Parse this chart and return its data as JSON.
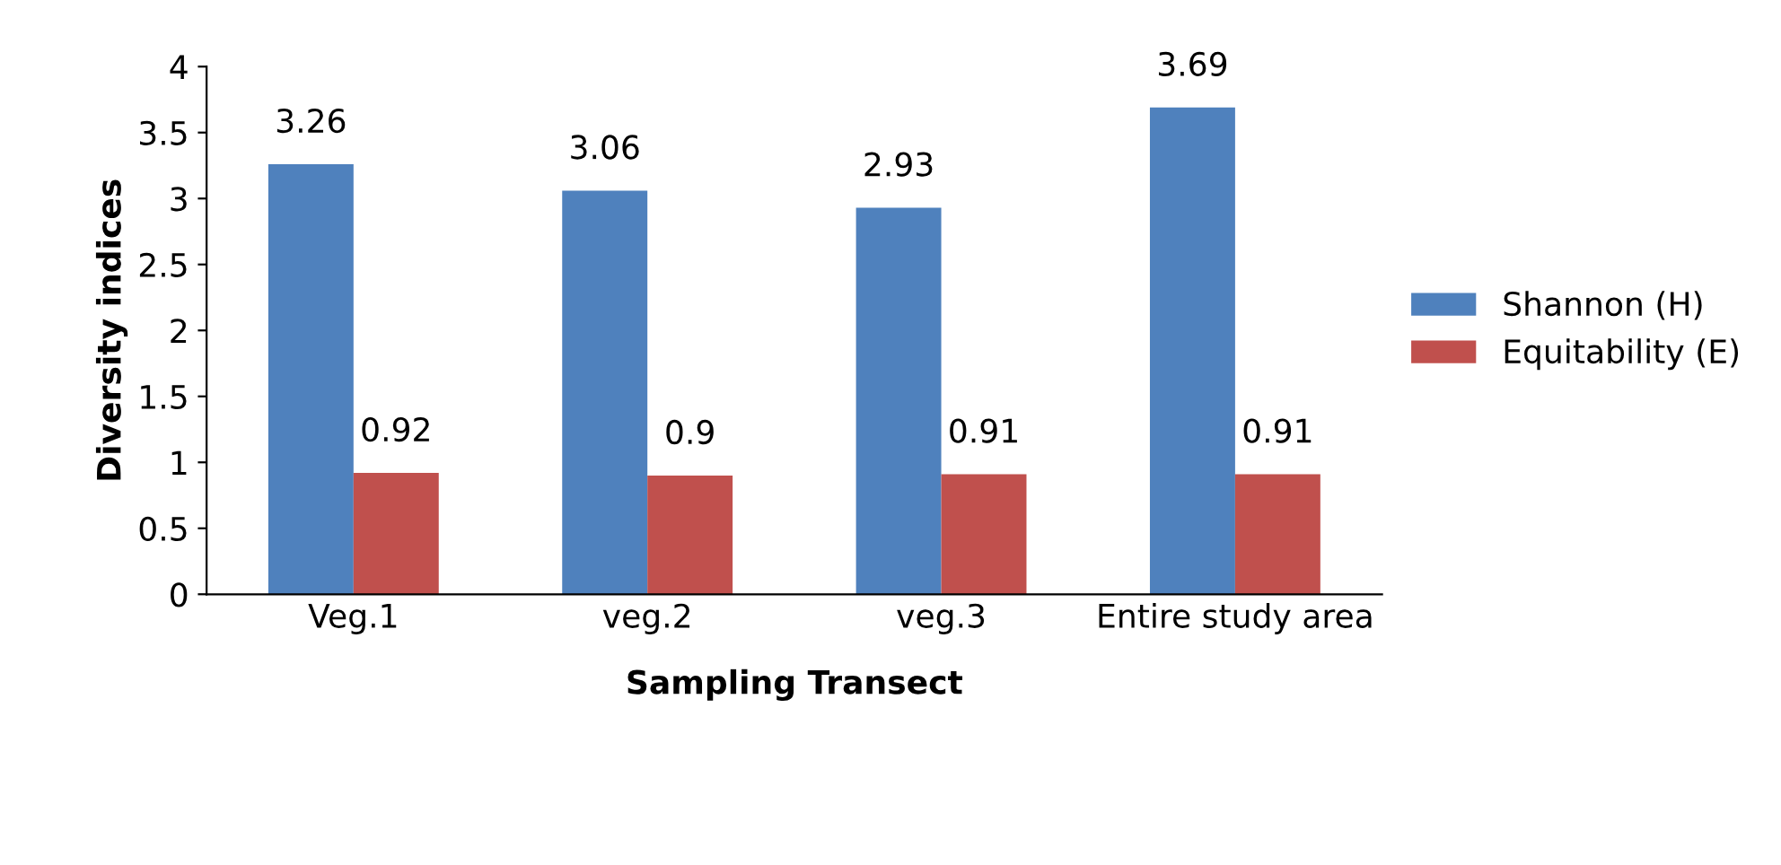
{
  "chart_data": {
    "type": "bar",
    "xlabel": "Sampling Transect",
    "ylabel": "Diversity indices",
    "categories": [
      "Veg.1",
      "veg.2",
      "veg.3",
      "Entire study area"
    ],
    "series": [
      {
        "name": "Shannon (H)",
        "color": "#4f81bd",
        "values": [
          3.26,
          3.06,
          2.93,
          3.69
        ]
      },
      {
        "name": "Equitability (E)",
        "color": "#c0504d",
        "values": [
          0.92,
          0.9,
          0.91,
          0.91
        ]
      }
    ],
    "ylim": [
      0,
      4
    ],
    "yticks": [
      0,
      0.5,
      1,
      1.5,
      2,
      2.5,
      3,
      3.5,
      4
    ],
    "grid": false,
    "legend": "right",
    "data_labels": true
  }
}
